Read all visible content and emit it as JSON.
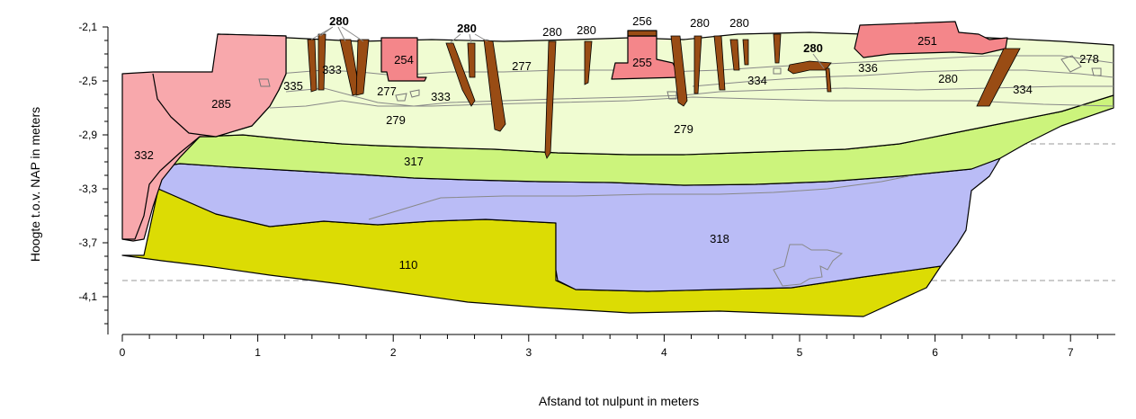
{
  "axes": {
    "y_title": "Hoogte t.o.v. NAP in meters",
    "x_title": "Afstand tot nulpunt in meters",
    "y_ticks": [
      "-2,1",
      "-2,5",
      "-2,9",
      "-3,3",
      "-3,7",
      "-4,1"
    ],
    "x_ticks": [
      "0",
      "1",
      "2",
      "3",
      "4",
      "5",
      "6",
      "7"
    ]
  },
  "colors": {
    "light_green": "#f0fcd2",
    "green": "#ccf47c",
    "lavender": "#babcf6",
    "olive_yellow": "#dcdc04",
    "pink_light": "#f8a8ac",
    "pink": "#f4868a",
    "post_brown": "#994c14"
  },
  "labels": {
    "l285": "285",
    "l332": "332",
    "l335": "335",
    "l333a": "333",
    "l333b": "333",
    "l277a": "277",
    "l277b": "277",
    "l279a": "279",
    "l279b": "279",
    "l254": "254",
    "l255": "255",
    "l256": "256",
    "l251": "251",
    "l336": "336",
    "l334a": "334",
    "l334b": "334",
    "l278": "278",
    "l317": "317",
    "l318": "318",
    "l110": "110",
    "l280_a": "280",
    "l280_b": "280",
    "l280_c": "280",
    "l280_d": "280",
    "l280_e": "280",
    "l280_f": "280",
    "l280_g": "280",
    "l280_h": "280"
  }
}
